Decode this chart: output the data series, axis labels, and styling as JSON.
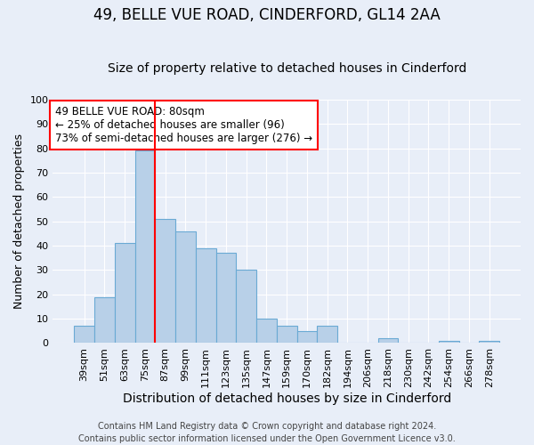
{
  "title": "49, BELLE VUE ROAD, CINDERFORD, GL14 2AA",
  "subtitle": "Size of property relative to detached houses in Cinderford",
  "xlabel": "Distribution of detached houses by size in Cinderford",
  "ylabel": "Number of detached properties",
  "categories": [
    "39sqm",
    "51sqm",
    "63sqm",
    "75sqm",
    "87sqm",
    "99sqm",
    "111sqm",
    "123sqm",
    "135sqm",
    "147sqm",
    "159sqm",
    "170sqm",
    "182sqm",
    "194sqm",
    "206sqm",
    "218sqm",
    "230sqm",
    "242sqm",
    "254sqm",
    "266sqm",
    "278sqm"
  ],
  "values": [
    7,
    19,
    41,
    79,
    51,
    46,
    39,
    37,
    30,
    10,
    7,
    5,
    7,
    0,
    0,
    2,
    0,
    0,
    1,
    0,
    1
  ],
  "bar_color": "#b8d0e8",
  "bar_edge_color": "#6aaad4",
  "red_line_index": 4,
  "annotation_line1": "49 BELLE VUE ROAD: 80sqm",
  "annotation_line2": "← 25% of detached houses are smaller (96)",
  "annotation_line3": "73% of semi-detached houses are larger (276) →",
  "annotation_box_color": "white",
  "annotation_box_edge": "red",
  "ylim": [
    0,
    100
  ],
  "yticks": [
    0,
    10,
    20,
    30,
    40,
    50,
    60,
    70,
    80,
    90,
    100
  ],
  "footer_line1": "Contains HM Land Registry data © Crown copyright and database right 2024.",
  "footer_line2": "Contains public sector information licensed under the Open Government Licence v3.0.",
  "bg_color": "#e8eef8",
  "grid_color": "white",
  "title_fontsize": 12,
  "subtitle_fontsize": 10,
  "xlabel_fontsize": 10,
  "ylabel_fontsize": 9,
  "tick_fontsize": 8,
  "footer_fontsize": 7,
  "annotation_fontsize": 8.5
}
